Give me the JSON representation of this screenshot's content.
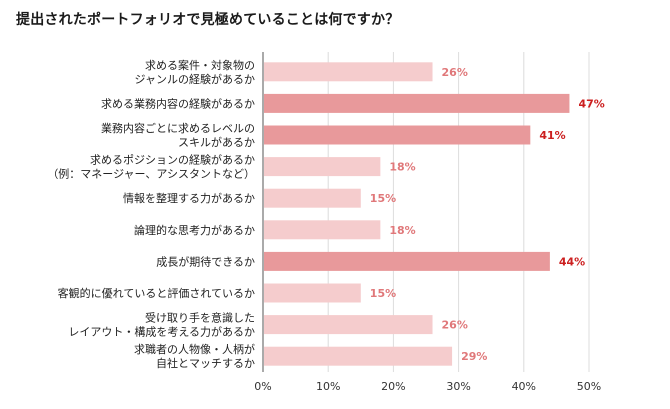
{
  "chart_data": {
    "type": "bar",
    "orientation": "horizontal",
    "title": "提出されたポートフォリオで見極めていることは何ですか？",
    "categories": [
      [
        "求める案件・対象物の",
        "ジャンルの経験があるか"
      ],
      [
        "求める業務内容の経験があるか"
      ],
      [
        "業務内容ごとに求めるレベルの",
        "スキルがあるか"
      ],
      [
        "求めるポジションの経験があるか",
        "（例：マネージャー、アシスタントなど）"
      ],
      [
        "情報を整理する力があるか"
      ],
      [
        "論理的な思考力があるか"
      ],
      [
        "成長が期待できるか"
      ],
      [
        "客観的に優れていると評価されているか"
      ],
      [
        "受け取り手を意識した",
        "レイアウト・構成を考える力があるか"
      ],
      [
        "求職者の人物像・人柄が",
        "自社とマッチするか"
      ]
    ],
    "values": [
      26,
      47,
      41,
      18,
      15,
      18,
      44,
      15,
      26,
      29
    ],
    "value_labels": [
      "26%",
      "47%",
      "41%",
      "18%",
      "15%",
      "18%",
      "44%",
      "15%",
      "26%",
      "29%"
    ],
    "highlighted": [
      false,
      true,
      true,
      false,
      false,
      false,
      true,
      false,
      false,
      false
    ],
    "xlim": [
      0,
      50
    ],
    "xticks": [
      "0%",
      "10%",
      "20%",
      "30%",
      "40%",
      "50%"
    ],
    "grid": true,
    "colors": {
      "bar": "#f5cccd",
      "bar_highlight": "#e8999b",
      "label": "#e0787a",
      "label_highlight": "#cc1f1f",
      "grid": "#dcdcdc",
      "axis": "#555555"
    }
  }
}
